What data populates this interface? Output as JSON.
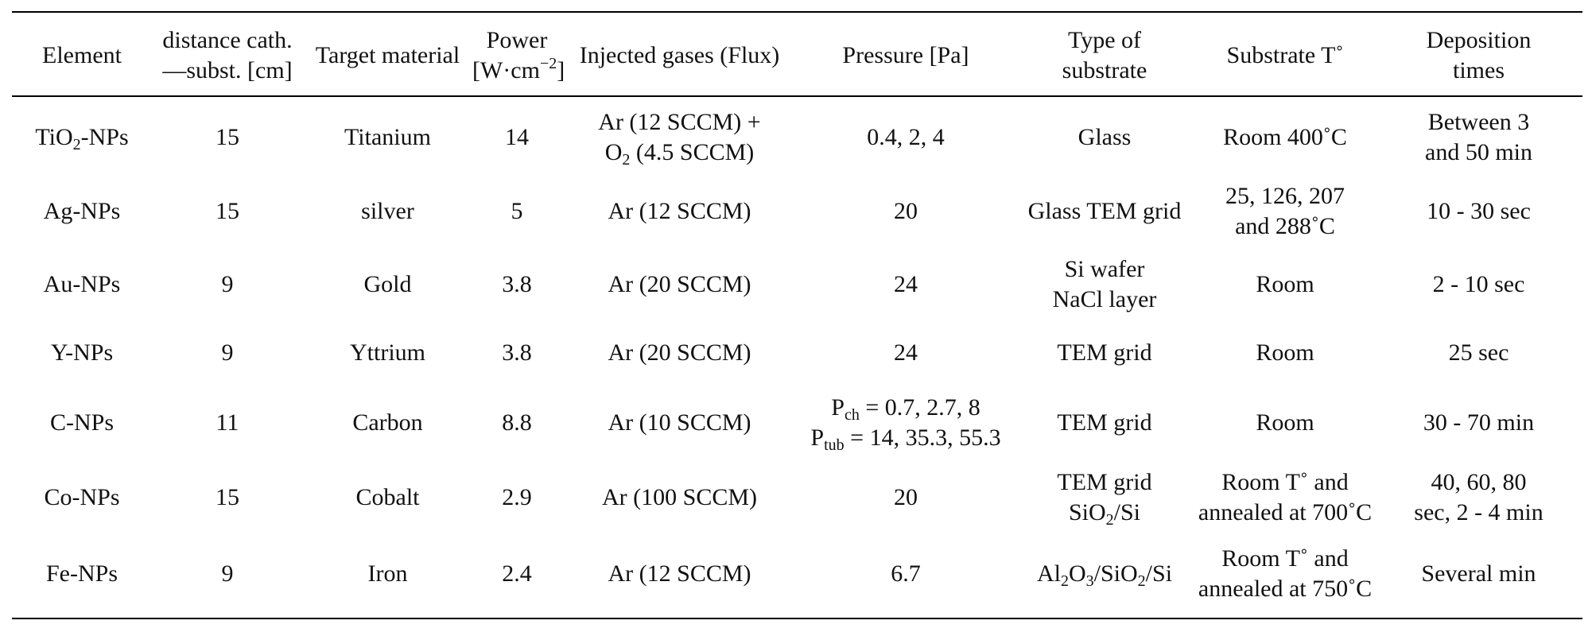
{
  "headers": [
    {
      "text": "Element"
    },
    {
      "line1": "distance cath.",
      "line2": "—subst. [cm]"
    },
    {
      "text": "Target material"
    },
    {
      "line1": "Power",
      "line2_pre": "[W·cm",
      "line2_sup": "−2",
      "line2_post": "]"
    },
    {
      "text": "Injected gases (Flux)"
    },
    {
      "text": "Pressure [Pa]"
    },
    {
      "line1": "Type of",
      "line2": "substrate"
    },
    {
      "text": "Substrate T˚"
    },
    {
      "line1": "Deposition",
      "line2": "times"
    }
  ],
  "rows": [
    {
      "element": {
        "pre": "TiO",
        "sub": "2",
        "post": "-NPs"
      },
      "distance": "15",
      "target": "Titanium",
      "power": "14",
      "gases": {
        "line1": "Ar (12 SCCM) +",
        "line2_pre": "O",
        "line2_sub": "2",
        "line2_post": " (4.5 SCCM)"
      },
      "pressure": "0.4, 2, 4",
      "substrate": "Glass",
      "temp": "Room 400˚C",
      "times": {
        "line1": "Between 3",
        "line2": "and 50 min"
      }
    },
    {
      "element": "Ag-NPs",
      "distance": "15",
      "target": "silver",
      "power": "5",
      "gases": "Ar (12 SCCM)",
      "pressure": "20",
      "substrate": "Glass TEM grid",
      "temp": {
        "line1": "25, 126, 207",
        "line2": "and 288˚C"
      },
      "times": "10 - 30 sec"
    },
    {
      "element": "Au-NPs",
      "distance": "9",
      "target": "Gold",
      "power": "3.8",
      "gases": "Ar (20 SCCM)",
      "pressure": "24",
      "substrate": {
        "line1": "Si wafer",
        "line2": "NaCl layer"
      },
      "temp": "Room",
      "times": "2 - 10 sec"
    },
    {
      "element": "Y-NPs",
      "distance": "9",
      "target": "Yttrium",
      "power": "3.8",
      "gases": "Ar (20 SCCM)",
      "pressure": "24",
      "substrate": "TEM grid",
      "temp": "Room",
      "times": "25 sec"
    },
    {
      "element": "C-NPs",
      "distance": "11",
      "target": "Carbon",
      "power": "8.8",
      "gases": "Ar (10 SCCM)",
      "pressure": {
        "l1_pre": "P",
        "l1_sub": "ch",
        "l1_post": " = 0.7, 2.7, 8",
        "l2_pre": "P",
        "l2_sub": "tub",
        "l2_post": " = 14, 35.3, 55.3"
      },
      "substrate": "TEM grid",
      "temp": "Room",
      "times": "30 - 70 min"
    },
    {
      "element": "Co-NPs",
      "distance": "15",
      "target": "Cobalt",
      "power": "2.9",
      "gases": "Ar (100 SCCM)",
      "pressure": "20",
      "substrate": {
        "line1": "TEM grid",
        "line2_pre": "SiO",
        "line2_sub": "2",
        "line2_post": "/Si"
      },
      "temp": {
        "line1": "Room T˚ and",
        "line2": "annealed at 700˚C"
      },
      "times": {
        "line1": "40, 60, 80",
        "line2": "sec, 2 - 4 min"
      }
    },
    {
      "element": "Fe-NPs",
      "distance": "9",
      "target": "Iron",
      "power": "2.4",
      "gases": "Ar (12 SCCM)",
      "pressure": "6.7",
      "substrate": {
        "a": "Al",
        "a_sub": "2",
        "b": "O",
        "b_sub": "3",
        "c": "/SiO",
        "c_sub": "2",
        "d": "/Si"
      },
      "temp": {
        "line1": "Room T˚ and",
        "line2": "annealed at 750˚C"
      },
      "times": "Several min"
    }
  ]
}
